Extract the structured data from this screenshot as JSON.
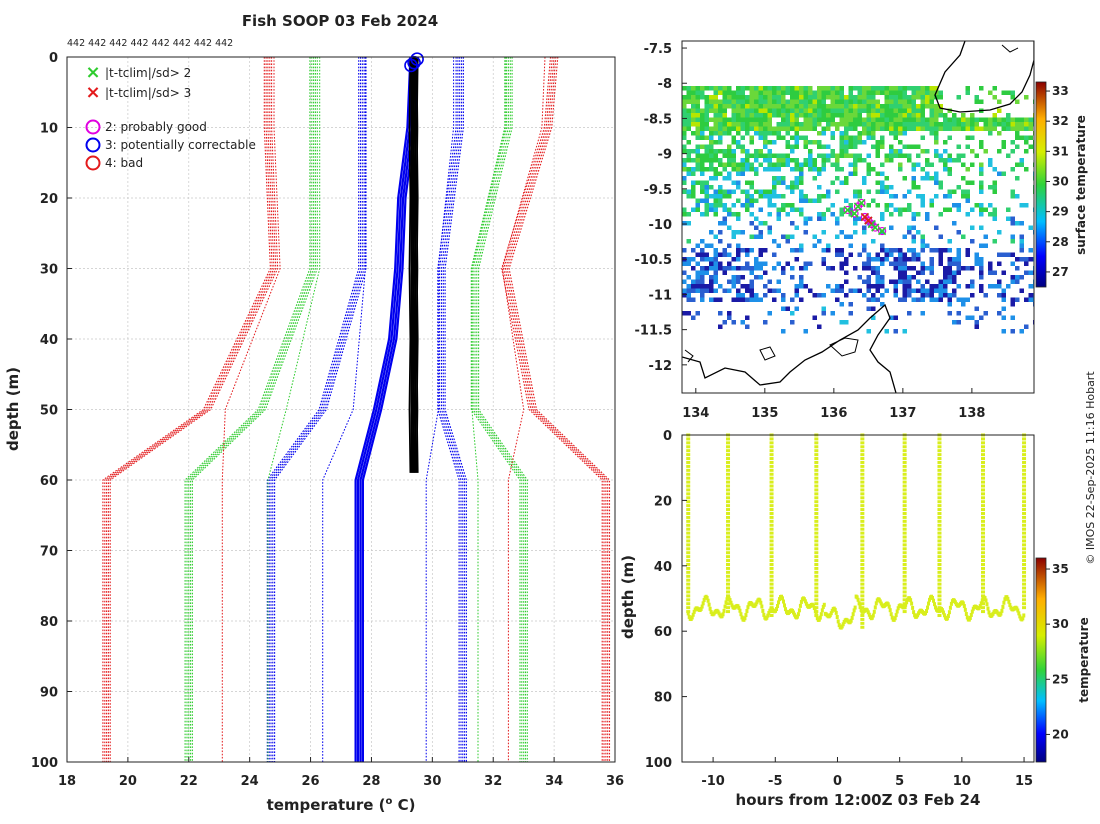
{
  "chart_data": [
    {
      "type": "line",
      "panel": "profile",
      "title": "Fish SOOP 03 Feb 2024",
      "counts_label": "442 442 442 442 442 442 442 442",
      "xlabel": "temperature (",
      "xlabel_sup": "o",
      "xlabel_end": " C)",
      "ylabel": "depth (m)",
      "xlim": [
        18,
        36
      ],
      "ylim": [
        0,
        100
      ],
      "xticks": [
        "18",
        "20",
        "22",
        "24",
        "26",
        "28",
        "30",
        "32",
        "34",
        "36"
      ],
      "yticks": [
        "0",
        "10",
        "20",
        "30",
        "40",
        "50",
        "60",
        "70",
        "80",
        "90",
        "100"
      ],
      "depth_levels": [
        0,
        10,
        30,
        50,
        60,
        100
      ],
      "envelope_series": [
        {
          "name": "clim -3sd",
          "color": "#e31a1c",
          "values": [
            24.6,
            24.6,
            24.8,
            22.6,
            19.3,
            19.3
          ]
        },
        {
          "name": "clim -2sd",
          "color": "#2ecc2e",
          "values": [
            26.1,
            26.1,
            26.1,
            24.4,
            22.0,
            22.0
          ]
        },
        {
          "name": "clim -1sd",
          "color": "#0000ee",
          "values": [
            27.7,
            27.7,
            27.7,
            26.4,
            24.7,
            24.7
          ]
        },
        {
          "name": "clim +1sd",
          "color": "#0000ee",
          "values": [
            30.9,
            30.9,
            30.3,
            30.3,
            31.0,
            31.0
          ]
        },
        {
          "name": "clim +2sd",
          "color": "#2ecc2e",
          "values": [
            32.5,
            32.5,
            31.4,
            31.4,
            33.0,
            33.0
          ]
        },
        {
          "name": "clim +3sd",
          "color": "#e31a1c",
          "values": [
            34.0,
            33.8,
            32.4,
            33.3,
            35.7,
            35.7
          ]
        }
      ],
      "inner_series": [
        {
          "name": "inner red lo",
          "color": "#e31a1c",
          "values": [
            24.8,
            24.8,
            25.0,
            23.2,
            23.1,
            23.1
          ]
        },
        {
          "name": "inner green lo",
          "color": "#2ecc2e",
          "values": [
            26.3,
            26.3,
            26.3,
            25.2,
            24.6,
            24.6
          ]
        },
        {
          "name": "inner blue lo",
          "color": "#0000ee",
          "values": [
            27.8,
            27.8,
            27.8,
            27.4,
            26.4,
            26.4
          ]
        },
        {
          "name": "inner blue hi",
          "color": "#0000ee",
          "values": [
            30.7,
            30.7,
            30.2,
            30.2,
            29.8,
            29.8
          ]
        },
        {
          "name": "inner green hi",
          "color": "#2ecc2e",
          "values": [
            32.4,
            32.4,
            31.3,
            31.3,
            31.5,
            31.5
          ]
        },
        {
          "name": "inner red hi",
          "color": "#e31a1c",
          "values": [
            33.7,
            33.6,
            32.3,
            33.0,
            32.5,
            32.5
          ]
        }
      ],
      "mean_profile": {
        "name": "climatology mean",
        "color": "#0000ee",
        "depths": [
          0,
          10,
          20,
          30,
          40,
          50,
          60,
          100
        ],
        "values": [
          29.4,
          29.3,
          29.0,
          28.9,
          28.7,
          28.2,
          27.6,
          27.6
        ]
      },
      "observed_profile": {
        "name": "observed",
        "color": "#000000",
        "depths": [
          0,
          10,
          20,
          30,
          40,
          50,
          59
        ],
        "values": [
          29.4,
          29.4,
          29.4,
          29.4,
          29.4,
          29.4,
          29.4
        ]
      },
      "flag_circles": [
        {
          "x": 29.3,
          "y": 1.2,
          "color": "#0000ee"
        },
        {
          "x": 29.5,
          "y": 0.3,
          "color": "#0000ee"
        },
        {
          "x": 29.4,
          "y": 0.8,
          "color": "#0000ee"
        }
      ],
      "legend": [
        {
          "marker": "×",
          "color": "#2ecc2e",
          "label": "|t-tclim|/sd> 2"
        },
        {
          "marker": "×",
          "color": "#e31a1c",
          "label": "|t-tclim|/sd> 3"
        },
        {
          "marker": "○",
          "color": "#e000e0",
          "label": "2: probably good"
        },
        {
          "marker": "○",
          "color": "#0000ee",
          "label": "3: potentially correctable"
        },
        {
          "marker": "○",
          "color": "#e31a1c",
          "label": "4: bad"
        }
      ]
    },
    {
      "type": "heatmap",
      "panel": "map",
      "xlim": [
        133.8,
        138.9
      ],
      "ylim": [
        -12.4,
        -7.4
      ],
      "xticks": [
        "134",
        "135",
        "136",
        "137",
        "138"
      ],
      "yticks": [
        "-7.5",
        "-8",
        "-8.5",
        "-9",
        "-9.5",
        "-10",
        "-10.5",
        "-11",
        "-11.5",
        "-12"
      ],
      "colorbar": {
        "label": "surface temperature",
        "range": [
          26.5,
          33.3
        ],
        "ticks": [
          "27",
          "28",
          "29",
          "30",
          "31",
          "32",
          "33"
        ]
      },
      "track_points": [
        {
          "lon": 136.2,
          "lat": -9.8
        },
        {
          "lon": 136.35,
          "lat": -9.75
        },
        {
          "lon": 136.4,
          "lat": -9.7
        },
        {
          "lon": 136.45,
          "lat": -9.9
        },
        {
          "lon": 136.5,
          "lat": -9.95
        },
        {
          "lon": 136.55,
          "lat": -10.0
        },
        {
          "lon": 136.6,
          "lat": -10.05
        },
        {
          "lon": 136.7,
          "lat": -10.1
        },
        {
          "lon": 136.3,
          "lat": -9.85
        }
      ]
    },
    {
      "type": "scatter",
      "panel": "time-depth",
      "xlabel": "hours from 12:00Z 03 Feb 24",
      "ylabel": "depth (m)",
      "xlim": [
        -12.5,
        15.8
      ],
      "ylim": [
        0,
        100
      ],
      "xticks": [
        "-10",
        "-5",
        "0",
        "5",
        "10",
        "15"
      ],
      "yticks": [
        "0",
        "20",
        "40",
        "60",
        "80",
        "100"
      ],
      "colorbar": {
        "label": "temperature",
        "range": [
          17.5,
          36
        ],
        "ticks": [
          "20",
          "25",
          "30",
          "35"
        ]
      },
      "profile_times_h": [
        -12.0,
        -8.8,
        -5.3,
        -1.7,
        2.0,
        5.4,
        8.2,
        11.7,
        15.0
      ],
      "profile_max_depth_m": [
        55,
        55,
        56,
        56,
        59,
        55,
        56,
        55,
        54
      ],
      "temperature_c": 29.4
    }
  ],
  "credit": "© IMOS 22-Sep-2025 11:16 Hobart"
}
